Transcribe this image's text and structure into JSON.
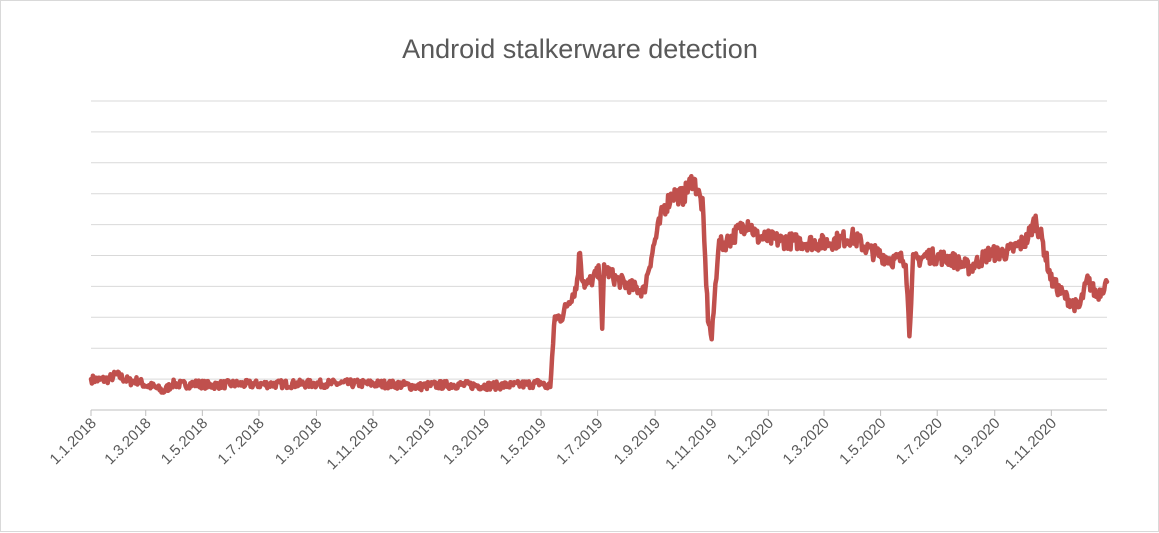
{
  "chart_data": {
    "type": "line",
    "title": "Android stalkerware detection",
    "xlabel": "",
    "ylabel": "",
    "x_tick_labels": [
      "1.1.2018",
      "1.3.2018",
      "1.5.2018",
      "1.7.2018",
      "1.9.2018",
      "1.11.2018",
      "1.1.2019",
      "1.3.2019",
      "1.5.2019",
      "1.7.2019",
      "1.9.2019",
      "1.11.2019",
      "1.1.2020",
      "1.3.2020",
      "1.5.2020",
      "1.7.2020",
      "1.9.2020",
      "1.11.2020"
    ],
    "x_range": [
      "2018-01-01",
      "2020-12-31"
    ],
    "y_axis_labels_visible": false,
    "gridlines": 11,
    "grid": true,
    "legend": "none",
    "series_color": "#c0504d",
    "series": [
      {
        "points": [
          [
            "2018-01-01",
            1.0
          ],
          [
            "2018-01-10",
            0.97
          ],
          [
            "2018-01-20",
            1.0
          ],
          [
            "2018-01-28",
            1.15
          ],
          [
            "2018-02-05",
            1.02
          ],
          [
            "2018-02-12",
            0.92
          ],
          [
            "2018-02-20",
            0.95
          ],
          [
            "2018-03-01",
            0.8
          ],
          [
            "2018-03-10",
            0.75
          ],
          [
            "2018-03-20",
            0.6
          ],
          [
            "2018-03-30",
            0.85
          ],
          [
            "2018-04-10",
            0.82
          ],
          [
            "2018-04-25",
            0.85
          ],
          [
            "2018-05-10",
            0.8
          ],
          [
            "2018-06-01",
            0.84
          ],
          [
            "2018-07-01",
            0.83
          ],
          [
            "2018-08-01",
            0.84
          ],
          [
            "2018-09-01",
            0.85
          ],
          [
            "2018-10-01",
            0.86
          ],
          [
            "2018-11-01",
            0.85
          ],
          [
            "2018-12-01",
            0.82
          ],
          [
            "2018-12-20",
            0.75
          ],
          [
            "2019-01-01",
            0.8
          ],
          [
            "2019-02-01",
            0.82
          ],
          [
            "2019-03-01",
            0.78
          ],
          [
            "2019-04-01",
            0.8
          ],
          [
            "2019-04-25",
            0.85
          ],
          [
            "2019-05-01",
            0.9
          ],
          [
            "2019-05-06",
            0.75
          ],
          [
            "2019-05-11",
            0.8
          ],
          [
            "2019-05-16",
            3.0
          ],
          [
            "2019-05-23",
            3.0
          ],
          [
            "2019-06-01",
            3.6
          ],
          [
            "2019-06-08",
            3.95
          ],
          [
            "2019-06-12",
            5.2
          ],
          [
            "2019-06-14",
            4.4
          ],
          [
            "2019-06-18",
            4.0
          ],
          [
            "2019-07-04",
            4.5
          ],
          [
            "2019-07-06",
            2.5
          ],
          [
            "2019-07-08",
            4.6
          ],
          [
            "2019-07-20",
            4.25
          ],
          [
            "2019-08-05",
            4.0
          ],
          [
            "2019-08-20",
            3.85
          ],
          [
            "2019-08-25",
            4.6
          ],
          [
            "2019-09-01",
            5.5
          ],
          [
            "2019-09-10",
            6.5
          ],
          [
            "2019-09-20",
            7.0
          ],
          [
            "2019-10-01",
            6.9
          ],
          [
            "2019-10-12",
            7.5
          ],
          [
            "2019-10-22",
            6.6
          ],
          [
            "2019-10-28",
            3.0
          ],
          [
            "2019-11-01",
            2.3
          ],
          [
            "2019-11-08",
            5.3
          ],
          [
            "2019-11-20",
            5.5
          ],
          [
            "2019-12-10",
            6.1
          ],
          [
            "2019-12-20",
            5.6
          ],
          [
            "2020-01-10",
            5.5
          ],
          [
            "2020-02-01",
            5.45
          ],
          [
            "2020-03-01",
            5.4
          ],
          [
            "2020-04-01",
            5.6
          ],
          [
            "2020-04-20",
            5.15
          ],
          [
            "2020-05-15",
            4.85
          ],
          [
            "2020-05-28",
            4.9
          ],
          [
            "2020-06-01",
            2.5
          ],
          [
            "2020-06-05",
            4.8
          ],
          [
            "2020-06-20",
            5.0
          ],
          [
            "2020-07-15",
            4.9
          ],
          [
            "2020-08-05",
            4.6
          ],
          [
            "2020-08-25",
            5.05
          ],
          [
            "2020-09-15",
            5.1
          ],
          [
            "2020-10-05",
            5.5
          ],
          [
            "2020-10-15",
            6.15
          ],
          [
            "2020-10-22",
            5.5
          ],
          [
            "2020-11-01",
            4.2
          ],
          [
            "2020-11-10",
            3.85
          ],
          [
            "2020-11-22",
            3.5
          ],
          [
            "2020-12-01",
            3.3
          ],
          [
            "2020-12-10",
            4.2
          ],
          [
            "2020-12-20",
            3.7
          ],
          [
            "2020-12-31",
            4.15
          ]
        ]
      }
    ]
  }
}
